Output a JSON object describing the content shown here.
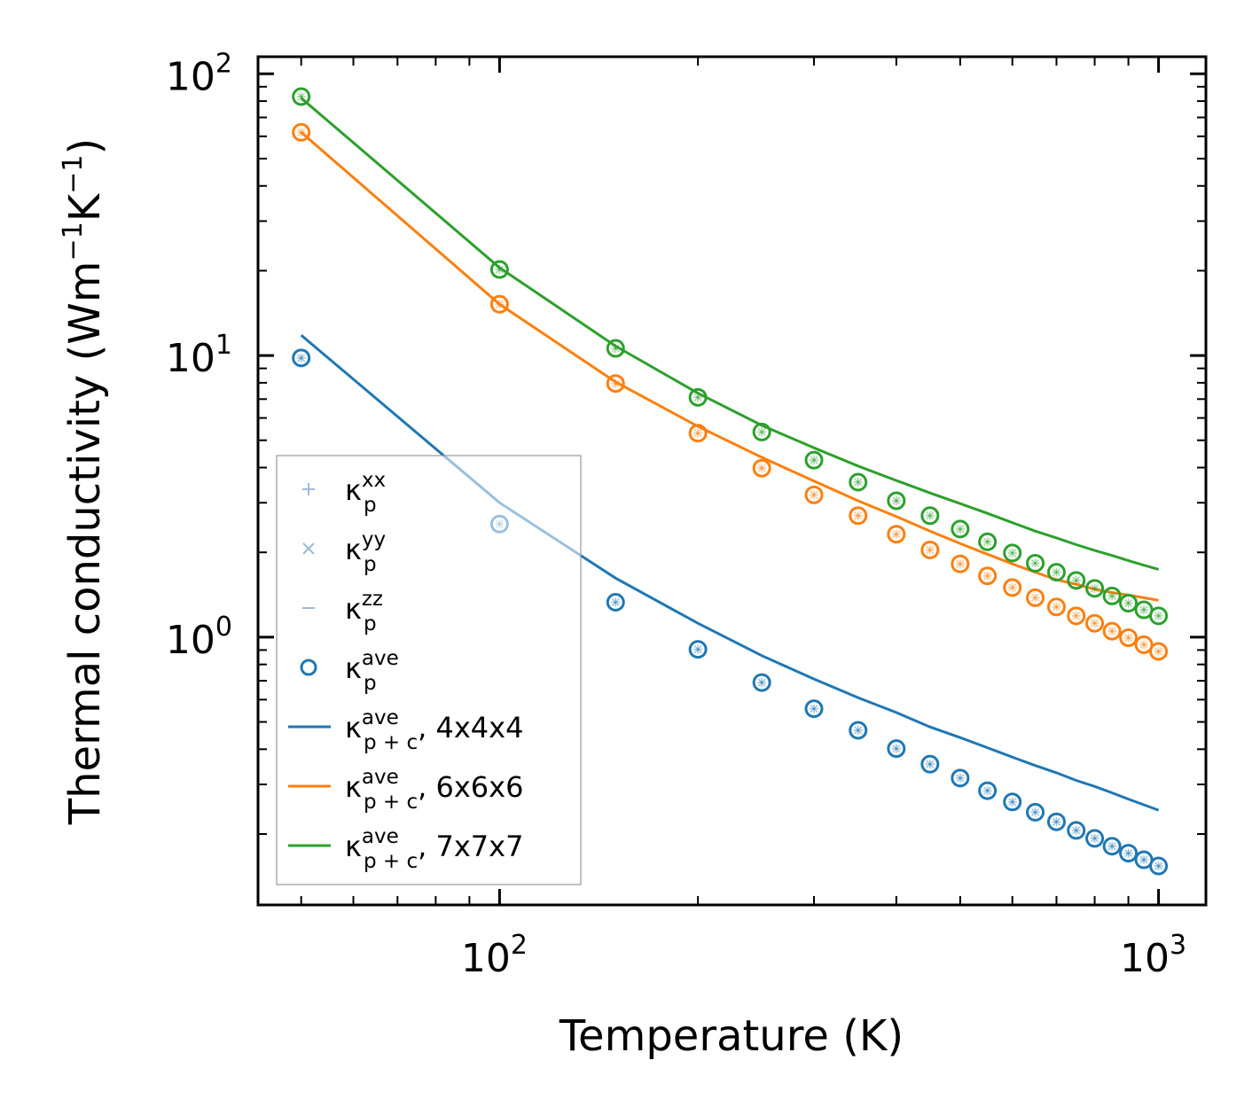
{
  "chart_data": {
    "type": "line",
    "title": "",
    "xlabel": "Temperature (K)",
    "ylabel_main": "Thermal conductivity (Wm",
    "ylabel_sup1": "−1",
    "ylabel_mid": "K",
    "ylabel_sup2": "−1",
    "ylabel_end": ")",
    "x_scale": "log",
    "y_scale": "log",
    "xlim": [
      43,
      1180
    ],
    "ylim": [
      0.112,
      115
    ],
    "x_ticks": [
      {
        "base": "10",
        "exp": "2",
        "value": 100
      },
      {
        "base": "10",
        "exp": "3",
        "value": 1000
      }
    ],
    "y_ticks": [
      {
        "base": "10",
        "exp": "0",
        "value": 1
      },
      {
        "base": "10",
        "exp": "1",
        "value": 10
      },
      {
        "base": "10",
        "exp": "2",
        "value": 100
      }
    ],
    "temperatures": [
      50,
      100,
      150,
      200,
      250,
      300,
      350,
      400,
      450,
      500,
      550,
      600,
      650,
      700,
      750,
      800,
      850,
      900,
      950,
      1000
    ],
    "marker_series": [
      {
        "name": "kappa_p 4x4x4",
        "color": "#1f77b4",
        "values": [
          9.8,
          2.52,
          1.33,
          0.905,
          0.69,
          0.557,
          0.467,
          0.402,
          0.354,
          0.316,
          0.285,
          0.26,
          0.239,
          0.221,
          0.206,
          0.193,
          0.181,
          0.171,
          0.162,
          0.154
        ]
      },
      {
        "name": "kappa_p 6x6x6",
        "color": "#ff7f0e",
        "values": [
          62.0,
          15.2,
          7.95,
          5.3,
          3.98,
          3.2,
          2.7,
          2.32,
          2.04,
          1.82,
          1.65,
          1.5,
          1.38,
          1.28,
          1.19,
          1.12,
          1.05,
          0.995,
          0.94,
          0.89
        ]
      },
      {
        "name": "kappa_p 7x7x7",
        "color": "#2ca02c",
        "values": [
          83.0,
          20.2,
          10.6,
          7.1,
          5.35,
          4.25,
          3.55,
          3.05,
          2.7,
          2.42,
          2.18,
          1.99,
          1.83,
          1.7,
          1.59,
          1.49,
          1.4,
          1.32,
          1.25,
          1.19
        ]
      }
    ],
    "line_series": [
      {
        "name": "kappa_p+c 4x4x4",
        "color": "#1f77b4",
        "values": [
          11.8,
          3.0,
          1.62,
          1.12,
          0.86,
          0.71,
          0.61,
          0.54,
          0.48,
          0.44,
          0.405,
          0.375,
          0.35,
          0.33,
          0.31,
          0.295,
          0.28,
          0.266,
          0.254,
          0.243
        ]
      },
      {
        "name": "kappa_p+c 6x6x6",
        "color": "#ff7f0e",
        "values": [
          62.0,
          15.2,
          8.05,
          5.6,
          4.35,
          3.58,
          3.05,
          2.68,
          2.38,
          2.15,
          1.97,
          1.82,
          1.7,
          1.6,
          1.54,
          1.48,
          1.44,
          1.41,
          1.38,
          1.35
        ]
      },
      {
        "name": "kappa_p+c 7x7x7",
        "color": "#2ca02c",
        "values": [
          82.0,
          20.5,
          10.8,
          7.35,
          5.65,
          4.7,
          4.05,
          3.6,
          3.25,
          2.98,
          2.75,
          2.55,
          2.38,
          2.25,
          2.13,
          2.03,
          1.95,
          1.87,
          1.8,
          1.74
        ]
      }
    ],
    "legend": {
      "placement": "lower-left",
      "entries": [
        {
          "kind": "plus",
          "color": "#9dbcd6",
          "symbol": "κ",
          "sup": "xx",
          "sub": "p",
          "suffix": ""
        },
        {
          "kind": "cross",
          "color": "#9dbcd6",
          "symbol": "κ",
          "sup": "yy",
          "sub": "p",
          "suffix": ""
        },
        {
          "kind": "dash",
          "color": "#9dbcd6",
          "symbol": "κ",
          "sup": "zz",
          "sub": "p",
          "suffix": ""
        },
        {
          "kind": "circle",
          "color": "#1f77b4",
          "symbol": "κ",
          "sup": "ave",
          "sub": "p",
          "suffix": ""
        },
        {
          "kind": "line",
          "color": "#1f77b4",
          "symbol": "κ",
          "sup": "ave",
          "sub": "p + c",
          "suffix": ", 4x4x4"
        },
        {
          "kind": "line",
          "color": "#ff7f0e",
          "symbol": "κ",
          "sup": "ave",
          "sub": "p + c",
          "suffix": ", 6x6x6"
        },
        {
          "kind": "line",
          "color": "#2ca02c",
          "symbol": "κ",
          "sup": "ave",
          "sub": "p + c",
          "suffix": ", 7x7x7"
        }
      ]
    }
  }
}
